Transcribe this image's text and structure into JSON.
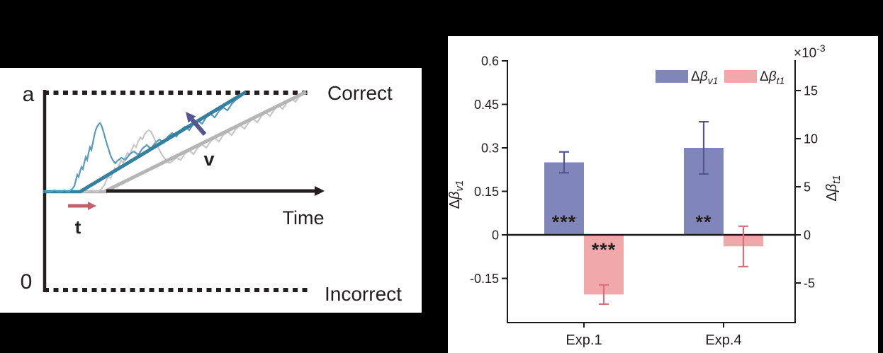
{
  "figure": {
    "background": "#000000",
    "description": "Two-panel scientific figure: drift-diffusion model schematic (left) and bar chart of regression-coefficient changes (right)"
  },
  "left_panel": {
    "labels": {
      "upper_bound": "a",
      "lower_bound": "0",
      "correct": "Correct",
      "incorrect": "Incorrect",
      "time": "Time",
      "drift_rate": "v",
      "nondecision_time": "t"
    },
    "colors": {
      "drift_blue": "#35809f",
      "noise_blue": "#579bbd",
      "drift_gray": "#b5b5b5",
      "noise_gray": "#c7c7c7",
      "purple_arrow": "#57548f",
      "red_arrow": "#c2606b",
      "ink": "#231f20"
    }
  },
  "chart_data": {
    "type": "bar",
    "title": "",
    "categories": [
      "Exp.1",
      "Exp.4"
    ],
    "series": [
      {
        "name": "Δβv1",
        "label_delta": "Δ",
        "label_beta": "β",
        "label_sub": "v1",
        "axis": "left",
        "color": "#8186ba",
        "error_color": "#53548f",
        "values": [
          0.25,
          0.3
        ],
        "errors": [
          0.036,
          0.09
        ],
        "significance": [
          "***",
          "**"
        ]
      },
      {
        "name": "Δβt1",
        "label_delta": "Δ",
        "label_beta": "β",
        "label_sub": "t1",
        "axis": "right",
        "color": "#f1a8aa",
        "error_color": "#d5707d",
        "values": [
          -0.0062,
          -0.0012
        ],
        "errors": [
          0.001,
          0.0021
        ],
        "significance": [
          "***",
          ""
        ]
      }
    ],
    "left_axis": {
      "label_delta": "Δ",
      "label_beta": "β",
      "label_sub": "v1",
      "ylim": [
        -0.302,
        0.6
      ],
      "ticks": [
        0.6,
        0.45,
        0.3,
        0.15,
        0,
        -0.15
      ],
      "tick_labels": [
        "0.6",
        "0.45",
        "0.3",
        "0.15",
        "0",
        "-0.15"
      ]
    },
    "right_axis": {
      "label_delta": "Δ",
      "label_beta": "β",
      "label_sub": "t1",
      "multiplier_main": "×10",
      "multiplier_exp": "-3",
      "ylim": [
        -0.0091,
        0.0182
      ],
      "ticks": [
        0.015,
        0.01,
        0.005,
        0,
        -0.005
      ],
      "tick_labels": [
        "15",
        "10",
        "5",
        "0",
        "-5"
      ]
    },
    "xlabel": "",
    "grid": false,
    "legend_position": "top-right-inside",
    "ink": "#1a1a1a"
  }
}
